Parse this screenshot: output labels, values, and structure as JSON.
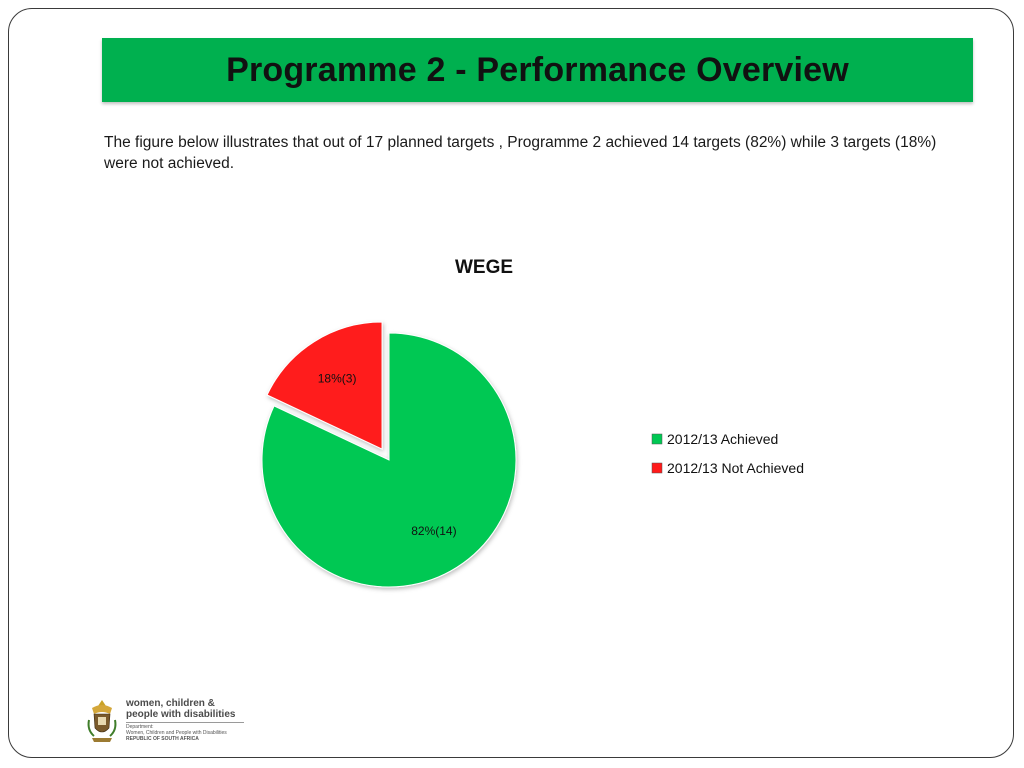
{
  "slide": {
    "title": "Programme 2 - Performance Overview",
    "description": "The figure below illustrates that out of 17 planned targets , Programme 2 achieved 14 targets  (82%)  while 3 targets (18%) were not achieved."
  },
  "chart_data": {
    "type": "pie",
    "title": "WEGE",
    "slices": [
      {
        "name": "2012/13 Achieved",
        "value": 82,
        "count": 14,
        "label": "82%(14)",
        "color": "#00c853"
      },
      {
        "name": "2012/13 Not Achieved",
        "value": 18,
        "count": 3,
        "label": "18%(3)",
        "color": "#ff1a1a"
      }
    ],
    "legend_position": "right",
    "exploded_slice": "2012/13 Not Achieved"
  },
  "logo": {
    "line1": "women, children &",
    "line2": "people with disabilities",
    "department": "Department:",
    "department_name": "Women, Children and People with Disabilities",
    "country": "REPUBLIC OF SOUTH AFRICA",
    "text_color": "#4b4b4b"
  },
  "colors": {
    "title_bar": "#00b04f",
    "frame_border": "#3a3a3a"
  }
}
